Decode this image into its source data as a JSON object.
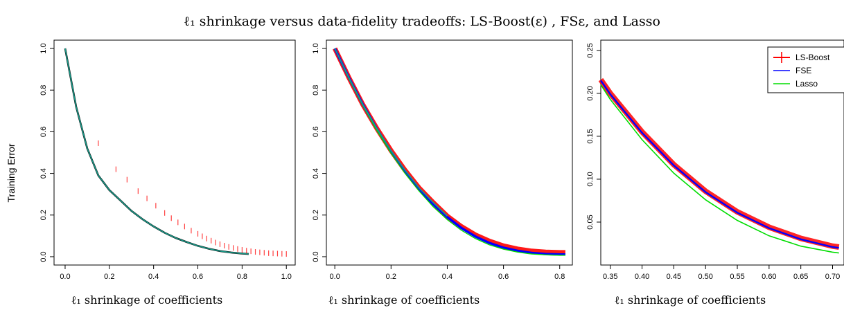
{
  "title": "ℓ₁ shrinkage versus data-fidelity tradeoffs: LS-Boost(ε) , FSε, and Lasso",
  "shared_ylabel": "Training Error",
  "colors": {
    "ls_boost": "#ff0000",
    "fse": "#0000ff",
    "lasso": "#00dd00",
    "teal": "#1a9b8a",
    "dark": "#000000"
  },
  "chart_data": [
    {
      "type": "line",
      "xlabel": "ℓ₁ shrinkage of coefficients",
      "ylabel": "Training Error",
      "xlim": [
        0.0,
        1.0
      ],
      "ylim": [
        0.0,
        1.0
      ],
      "xticks": [
        "0.0",
        "0.2",
        "0.4",
        "0.6",
        "0.8",
        "1.0"
      ],
      "yticks": [
        "0.0",
        "0.2",
        "0.4",
        "0.6",
        "0.8",
        "1.0"
      ],
      "grid": false,
      "series": [
        {
          "key": "path",
          "x": [
            0.0,
            0.05,
            0.1,
            0.15,
            0.2,
            0.25,
            0.3,
            0.35,
            0.4,
            0.45,
            0.5,
            0.55,
            0.6,
            0.65,
            0.7,
            0.75,
            0.8,
            0.83
          ],
          "y": [
            1.0,
            0.72,
            0.52,
            0.39,
            0.32,
            0.27,
            0.22,
            0.18,
            0.145,
            0.115,
            0.09,
            0.07,
            0.052,
            0.038,
            0.027,
            0.02,
            0.015,
            0.013
          ]
        },
        {
          "key": "ls_boost_marks",
          "x": [
            0.15,
            0.23,
            0.28,
            0.33,
            0.37,
            0.41,
            0.45,
            0.48,
            0.51,
            0.54,
            0.57,
            0.6,
            0.62,
            0.64,
            0.66,
            0.68,
            0.7,
            0.72,
            0.74,
            0.76,
            0.78,
            0.8,
            0.82,
            0.84,
            0.86,
            0.88,
            0.9,
            0.92,
            0.94,
            0.96,
            0.98,
            1.0
          ],
          "y": [
            0.545,
            0.42,
            0.37,
            0.315,
            0.28,
            0.245,
            0.21,
            0.185,
            0.165,
            0.145,
            0.125,
            0.11,
            0.098,
            0.087,
            0.077,
            0.068,
            0.06,
            0.053,
            0.047,
            0.042,
            0.037,
            0.033,
            0.029,
            0.026,
            0.023,
            0.021,
            0.019,
            0.017,
            0.016,
            0.015,
            0.014,
            0.013
          ]
        }
      ]
    },
    {
      "type": "line",
      "xlabel": "ℓ₁ shrinkage of coefficients",
      "xlim": [
        0.0,
        0.82
      ],
      "ylim": [
        0.0,
        1.0
      ],
      "xticks": [
        "0.0",
        "0.2",
        "0.4",
        "0.6",
        "0.8"
      ],
      "yticks": [
        "0.0",
        "0.2",
        "0.4",
        "0.6",
        "0.8",
        "1.0"
      ],
      "grid": false,
      "series": [
        {
          "key": "ls_boost",
          "x": [
            0.0,
            0.05,
            0.1,
            0.15,
            0.2,
            0.25,
            0.3,
            0.35,
            0.4,
            0.45,
            0.5,
            0.55,
            0.6,
            0.65,
            0.7,
            0.75,
            0.8,
            0.82
          ],
          "y": [
            1.0,
            0.86,
            0.73,
            0.615,
            0.51,
            0.415,
            0.33,
            0.26,
            0.195,
            0.145,
            0.105,
            0.075,
            0.052,
            0.037,
            0.027,
            0.022,
            0.02,
            0.02
          ]
        },
        {
          "key": "fse",
          "x": [
            0.0,
            0.05,
            0.1,
            0.15,
            0.2,
            0.25,
            0.3,
            0.35,
            0.4,
            0.45,
            0.5,
            0.55,
            0.6,
            0.65,
            0.7,
            0.75,
            0.8,
            0.82
          ],
          "y": [
            1.0,
            0.86,
            0.73,
            0.612,
            0.505,
            0.41,
            0.325,
            0.252,
            0.19,
            0.138,
            0.097,
            0.066,
            0.043,
            0.028,
            0.018,
            0.013,
            0.011,
            0.011
          ]
        },
        {
          "key": "lasso",
          "x": [
            0.0,
            0.05,
            0.1,
            0.15,
            0.2,
            0.25,
            0.3,
            0.35,
            0.4,
            0.45,
            0.5,
            0.55,
            0.6,
            0.65,
            0.7,
            0.75,
            0.8,
            0.82
          ],
          "y": [
            1.0,
            0.855,
            0.725,
            0.605,
            0.497,
            0.4,
            0.315,
            0.24,
            0.178,
            0.127,
            0.087,
            0.057,
            0.036,
            0.022,
            0.013,
            0.009,
            0.007,
            0.007
          ]
        }
      ]
    },
    {
      "type": "line",
      "xlabel": "ℓ₁ shrinkage of coefficients",
      "xlim": [
        0.335,
        0.71
      ],
      "ylim": [
        0.0,
        0.255
      ],
      "xticks": [
        "0.35",
        "0.40",
        "0.45",
        "0.50",
        "0.55",
        "0.60",
        "0.65",
        "0.70"
      ],
      "yticks": [
        "0.05",
        "0.10",
        "0.15",
        "0.20",
        "0.25"
      ],
      "grid": false,
      "legend": "top-right",
      "series": [
        {
          "key": "ls_boost",
          "name": "LS-Boost",
          "x": [
            0.335,
            0.35,
            0.4,
            0.45,
            0.5,
            0.55,
            0.6,
            0.65,
            0.7,
            0.71
          ],
          "y": [
            0.216,
            0.2,
            0.155,
            0.117,
            0.086,
            0.062,
            0.044,
            0.031,
            0.022,
            0.021
          ]
        },
        {
          "key": "fse",
          "name": "FSE",
          "x": [
            0.335,
            0.35,
            0.4,
            0.45,
            0.5,
            0.55,
            0.6,
            0.65,
            0.7,
            0.71
          ],
          "y": [
            0.215,
            0.199,
            0.154,
            0.116,
            0.085,
            0.061,
            0.043,
            0.03,
            0.021,
            0.02
          ]
        },
        {
          "key": "lasso",
          "name": "Lasso",
          "x": [
            0.335,
            0.35,
            0.4,
            0.45,
            0.5,
            0.55,
            0.6,
            0.65,
            0.7,
            0.71
          ],
          "y": [
            0.21,
            0.193,
            0.146,
            0.107,
            0.076,
            0.052,
            0.034,
            0.022,
            0.015,
            0.014
          ]
        }
      ]
    }
  ]
}
